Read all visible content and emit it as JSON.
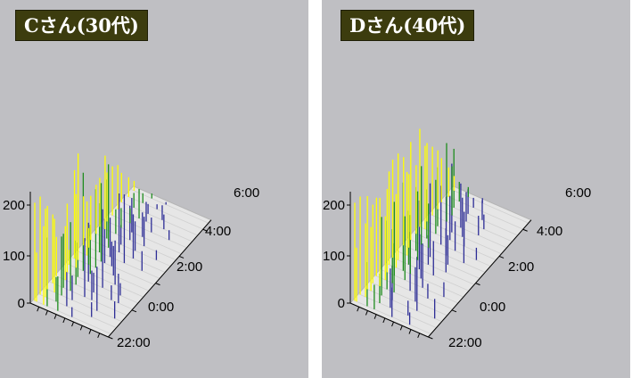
{
  "colors": {
    "panel_bg": "#bfbfc3",
    "badge_bg": "#3c3c0e",
    "badge_text": "#ffffff",
    "floor": "#e6e6e6",
    "floor_edge": "#b4b4b4",
    "axis": "#000000"
  },
  "chart_data": [
    {
      "type": "3d-waterfall",
      "title": "Cさん(30代)",
      "zlim": [
        0,
        200
      ],
      "z_ticks": [
        "0",
        "100",
        "200"
      ],
      "y_ticks": [
        "22:00",
        "0:00",
        "2:00",
        "4:00",
        "6:00"
      ],
      "series_colors": [
        "#ffff00",
        "#1e8c1e",
        "#2d2d96"
      ],
      "traces": [
        {
          "baseline": [
            0,
            0
          ],
          "points": [
            [
              0.5,
              200
            ],
            [
              1,
              100
            ],
            [
              3,
              160
            ],
            [
              4,
              140
            ],
            [
              7,
              70
            ],
            [
              11,
              20
            ]
          ]
        },
        {
          "baseline": [
            0,
            1
          ],
          "points": [
            [
              0.5,
              200
            ],
            [
              2,
              180
            ],
            [
              5,
              50
            ],
            [
              8,
              70
            ],
            [
              15,
              30
            ]
          ]
        },
        {
          "baseline": [
            0,
            2
          ],
          "points": [
            [
              1,
              170
            ],
            [
              3,
              150
            ],
            [
              5,
              120
            ],
            [
              8,
              50
            ],
            [
              15,
              90
            ],
            [
              20,
              35
            ]
          ]
        },
        {
          "baseline": [
            0,
            3
          ],
          "points": [
            [
              1,
              140
            ],
            [
              4,
              110
            ],
            [
              6,
              140
            ],
            [
              10,
              120
            ],
            [
              12,
              60
            ]
          ]
        },
        {
          "baseline": [
            1,
            4
          ],
          "points": [
            [
              0.5,
              80
            ],
            [
              3,
              110
            ],
            [
              6,
              90
            ],
            [
              11,
              40
            ],
            [
              16,
              30
            ],
            [
              18,
              60
            ]
          ]
        },
        {
          "baseline": [
            1,
            5
          ],
          "points": [
            [
              2,
              140
            ],
            [
              5,
              70
            ],
            [
              8,
              120
            ],
            [
              12,
              160
            ],
            [
              17,
              25
            ]
          ]
        },
        {
          "baseline": [
            1,
            6
          ],
          "points": [
            [
              1,
              30
            ],
            [
              3,
              150
            ],
            [
              5,
              200
            ],
            [
              7,
              100
            ],
            [
              14,
              90
            ]
          ]
        },
        {
          "baseline": [
            1,
            7
          ],
          "points": [
            [
              1,
              180
            ],
            [
              2,
              100
            ],
            [
              5,
              70
            ],
            [
              7,
              160
            ],
            [
              12,
              60
            ]
          ]
        },
        {
          "baseline": [
            1,
            8
          ],
          "points": [
            [
              0.5,
              200
            ],
            [
              3,
              110
            ],
            [
              7,
              160
            ],
            [
              8,
              90
            ],
            [
              10,
              50
            ]
          ]
        },
        {
          "baseline": [
            2,
            9
          ],
          "points": [
            [
              0.5,
              100
            ],
            [
              2,
              40
            ],
            [
              5,
              100
            ],
            [
              8,
              80
            ],
            [
              12,
              140
            ],
            [
              17,
              40
            ]
          ]
        },
        {
          "baseline": [
            2,
            10
          ],
          "points": [
            [
              1,
              90
            ],
            [
              6,
              170
            ],
            [
              9,
              120
            ],
            [
              13,
              90
            ]
          ]
        },
        {
          "baseline": [
            2,
            11
          ],
          "points": [
            [
              1,
              100
            ],
            [
              4,
              120
            ],
            [
              8,
              40
            ],
            [
              12,
              60
            ],
            [
              18,
              20
            ]
          ]
        },
        {
          "baseline": [
            2,
            12
          ],
          "points": [
            [
              0.5,
              100
            ],
            [
              2,
              150
            ],
            [
              5,
              50
            ],
            [
              9,
              70
            ],
            [
              13,
              60
            ]
          ]
        },
        {
          "baseline": [
            2,
            13
          ],
          "points": [
            [
              1,
              100
            ],
            [
              5,
              40
            ],
            [
              8,
              70
            ],
            [
              11,
              50
            ]
          ]
        },
        {
          "baseline": [
            2,
            14
          ],
          "points": [
            [
              1,
              100
            ],
            [
              6,
              30
            ],
            [
              12,
              30
            ],
            [
              17,
              20
            ]
          ]
        },
        {
          "baseline": [
            2,
            15
          ],
          "points": [
            [
              1,
              90
            ],
            [
              7,
              60
            ],
            [
              9,
              40
            ],
            [
              14,
              30
            ]
          ]
        },
        {
          "baseline": [
            2,
            16
          ],
          "points": [
            [
              0.5,
              60
            ],
            [
              4,
              30
            ],
            [
              8,
              20
            ],
            [
              12,
              30
            ]
          ]
        },
        {
          "baseline": [
            2,
            17
          ],
          "points": [
            [
              1,
              40
            ],
            [
              5,
              20
            ],
            [
              9,
              10
            ]
          ]
        },
        {
          "baseline": [
            2,
            18
          ],
          "points": [
            [
              1,
              20
            ],
            [
              6,
              10
            ],
            [
              10,
              5
            ]
          ]
        }
      ]
    },
    {
      "type": "3d-waterfall",
      "title": "Dさん(40代)",
      "zlim": [
        0,
        200
      ],
      "z_ticks": [
        "0",
        "100",
        "200"
      ],
      "y_ticks": [
        "22:00",
        "0:00",
        "2:00",
        "4:00",
        "6:00"
      ],
      "series_colors": [
        "#ffff00",
        "#1e8c1e",
        "#2d2d96"
      ],
      "traces": [
        {
          "baseline": [
            0,
            0
          ],
          "points": [
            [
              0.5,
              200
            ],
            [
              1,
              110
            ],
            [
              4,
              90
            ],
            [
              6,
              50
            ],
            [
              11,
              60
            ],
            [
              16,
              25
            ]
          ]
        },
        {
          "baseline": [
            0,
            1
          ],
          "points": [
            [
              0.5,
              200
            ],
            [
              2,
              150
            ],
            [
              6,
              60
            ],
            [
              9,
              80
            ],
            [
              14,
              30
            ]
          ]
        },
        {
          "baseline": [
            0,
            2
          ],
          "points": [
            [
              1,
              190
            ],
            [
              2,
              130
            ],
            [
              5,
              160
            ],
            [
              8,
              70
            ],
            [
              15,
              110
            ],
            [
              20,
              40
            ]
          ]
        },
        {
          "baseline": [
            0,
            3
          ],
          "points": [
            [
              1,
              160
            ],
            [
              3,
              180
            ],
            [
              5,
              140
            ],
            [
              7,
              100
            ],
            [
              13,
              70
            ]
          ]
        },
        {
          "baseline": [
            1,
            4
          ],
          "points": [
            [
              0.5,
              160
            ],
            [
              3,
              130
            ],
            [
              5,
              110
            ],
            [
              10,
              120
            ],
            [
              15,
              30
            ]
          ]
        },
        {
          "baseline": [
            1,
            5
          ],
          "points": [
            [
              2,
              170
            ],
            [
              4,
              150
            ],
            [
              7,
              130
            ],
            [
              12,
              90
            ],
            [
              18,
              30
            ]
          ]
        },
        {
          "baseline": [
            1,
            6
          ],
          "points": [
            [
              1,
              190
            ],
            [
              3,
              150
            ],
            [
              5,
              180
            ],
            [
              7,
              120
            ],
            [
              10,
              90
            ]
          ]
        },
        {
          "baseline": [
            1,
            7
          ],
          "points": [
            [
              0.5,
              200
            ],
            [
              2,
              160
            ],
            [
              5,
              110
            ],
            [
              8,
              140
            ],
            [
              12,
              70
            ]
          ]
        },
        {
          "baseline": [
            1,
            8
          ],
          "points": [
            [
              0.5,
              200
            ],
            [
              3,
              170
            ],
            [
              6,
              140
            ],
            [
              9,
              60
            ],
            [
              14,
              90
            ]
          ]
        },
        {
          "baseline": [
            2,
            9
          ],
          "points": [
            [
              0.5,
              180
            ],
            [
              2,
              150
            ],
            [
              4,
              130
            ],
            [
              8,
              150
            ],
            [
              13,
              60
            ]
          ]
        },
        {
          "baseline": [
            2,
            10
          ],
          "points": [
            [
              1,
              200
            ],
            [
              4,
              160
            ],
            [
              6,
              90
            ],
            [
              11,
              120
            ],
            [
              16,
              50
            ]
          ]
        },
        {
          "baseline": [
            2,
            11
          ],
          "points": [
            [
              1,
              140
            ],
            [
              4,
              100
            ],
            [
              8,
              120
            ],
            [
              12,
              60
            ],
            [
              18,
              25
            ]
          ]
        },
        {
          "baseline": [
            2,
            12
          ],
          "points": [
            [
              0.5,
              200
            ],
            [
              2,
              170
            ],
            [
              5,
              110
            ],
            [
              9,
              90
            ],
            [
              13,
              70
            ]
          ]
        },
        {
          "baseline": [
            2,
            13
          ],
          "points": [
            [
              1,
              160
            ],
            [
              4,
              120
            ],
            [
              8,
              140
            ],
            [
              11,
              80
            ]
          ]
        },
        {
          "baseline": [
            2,
            14
          ],
          "points": [
            [
              1,
              140
            ],
            [
              5,
              160
            ],
            [
              9,
              90
            ],
            [
              14,
              40
            ]
          ]
        },
        {
          "baseline": [
            2,
            15
          ],
          "points": [
            [
              1,
              120
            ],
            [
              5,
              100
            ],
            [
              9,
              60
            ],
            [
              14,
              30
            ]
          ]
        },
        {
          "baseline": [
            2,
            16
          ],
          "points": [
            [
              0.5,
              90
            ],
            [
              4,
              120
            ],
            [
              8,
              50
            ],
            [
              12,
              40
            ]
          ]
        },
        {
          "baseline": [
            2,
            17
          ],
          "points": [
            [
              1,
              60
            ],
            [
              4,
              40
            ],
            [
              8,
              20
            ]
          ]
        },
        {
          "baseline": [
            2,
            18
          ],
          "points": [
            [
              1,
              30
            ],
            [
              5,
              20
            ],
            [
              9,
              10
            ]
          ]
        }
      ]
    }
  ]
}
